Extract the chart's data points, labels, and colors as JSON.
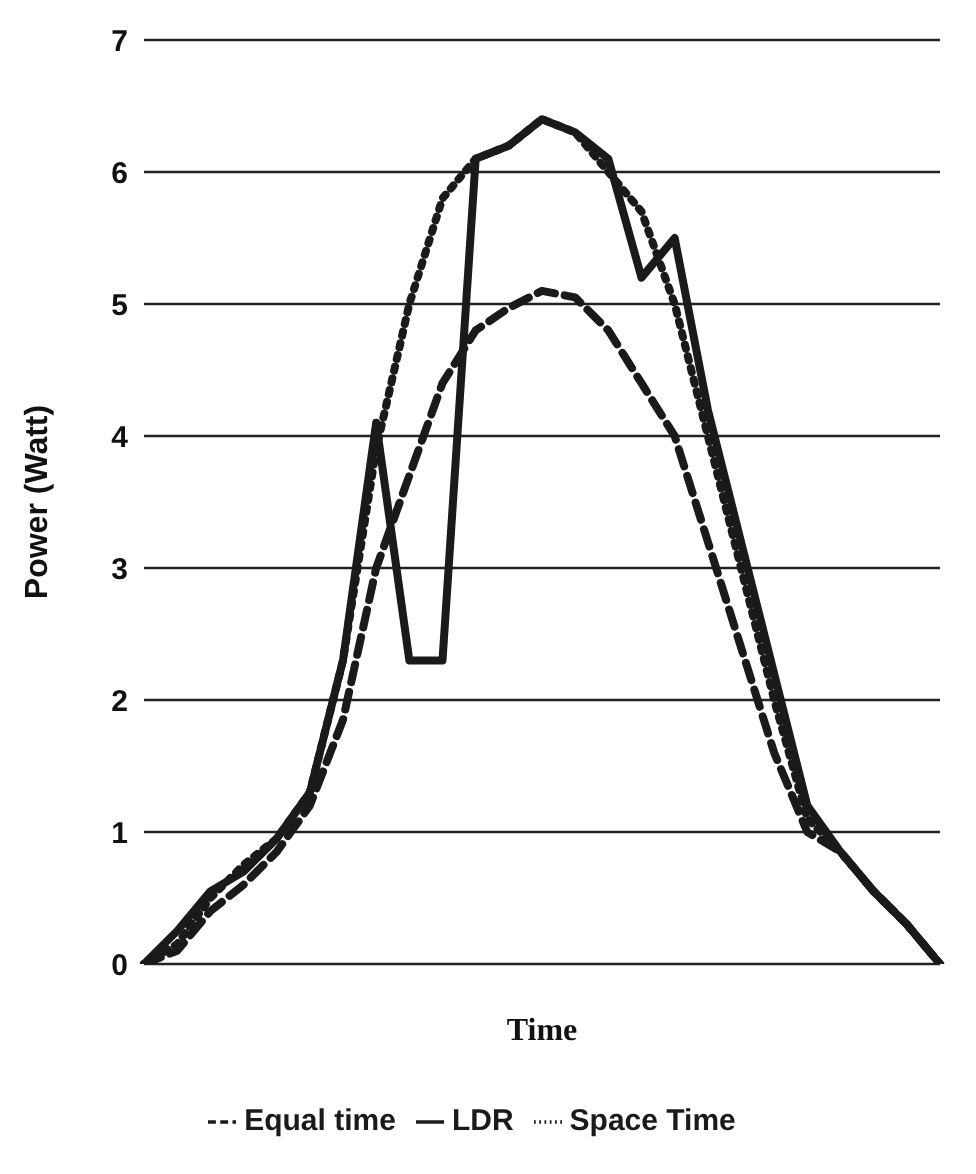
{
  "chart_data": {
    "type": "line",
    "xlabel": "Time",
    "ylabel": "Power (Watt)",
    "categories": [
      null,
      null,
      null,
      null,
      null,
      null,
      null,
      null,
      null,
      null,
      null,
      null,
      null,
      null,
      null,
      null,
      null,
      null,
      null,
      null,
      null,
      null,
      null,
      null,
      null
    ],
    "series": [
      {
        "name": "Space Time",
        "color": "#1a1a1a",
        "line_style": "dotted",
        "values": [
          0,
          0.15,
          0.5,
          0.75,
          0.95,
          1.3,
          2.3,
          3.9,
          5.0,
          5.8,
          6.1,
          6.2,
          6.4,
          6.3,
          6.0,
          5.7,
          5.0,
          4.0,
          3.0,
          2.0,
          1.1,
          0.85,
          0.55,
          0.3,
          0
        ]
      },
      {
        "name": "LDR",
        "color": "#1a1a1a",
        "line_style": "solid",
        "values": [
          0,
          0.25,
          0.55,
          0.7,
          0.95,
          1.3,
          2.3,
          4.1,
          2.3,
          2.3,
          6.1,
          6.2,
          6.4,
          6.3,
          6.1,
          5.2,
          5.5,
          4.2,
          3.2,
          2.2,
          1.2,
          0.85,
          0.55,
          0.3,
          0
        ]
      },
      {
        "name": "Equal time",
        "color": "#1a1a1a",
        "line_style": "dashed",
        "values": [
          0,
          0.1,
          0.4,
          0.6,
          0.85,
          1.2,
          1.85,
          3.0,
          3.7,
          4.4,
          4.8,
          4.97,
          5.1,
          5.05,
          4.8,
          4.4,
          4.0,
          3.2,
          2.4,
          1.6,
          1.0,
          0.85,
          0.55,
          0.3,
          0
        ]
      }
    ],
    "ylim": [
      0,
      7
    ],
    "yticks": [
      0,
      1,
      2,
      3,
      4,
      5,
      6,
      7
    ],
    "grid": "y",
    "tick_labels": "y",
    "legend": "bottom",
    "marker": "none"
  }
}
